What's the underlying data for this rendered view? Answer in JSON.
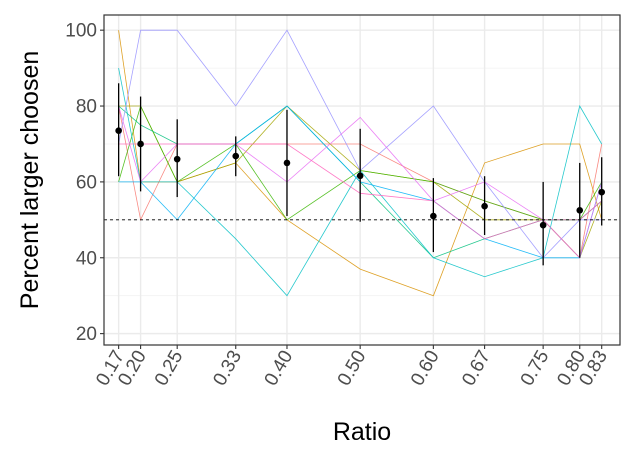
{
  "chart_data": {
    "type": "line",
    "xlabel": "Ratio",
    "ylabel": "Percent larger choosen",
    "xlim": [
      0.15,
      0.855
    ],
    "ylim": [
      17,
      104
    ],
    "x_ticks": [
      0.17,
      0.2,
      0.25,
      0.33,
      0.4,
      0.5,
      0.6,
      0.67,
      0.75,
      0.8,
      0.83
    ],
    "x_tick_labels": [
      "0.17",
      "0.20",
      "0.25",
      "0.33",
      "0.40",
      "0.50",
      "0.60",
      "0.67",
      "0.75",
      "0.80",
      "0.83"
    ],
    "y_ticks": [
      20,
      40,
      60,
      80,
      100
    ],
    "y_tick_labels": [
      "20",
      "40",
      "60",
      "80",
      "100"
    ],
    "reference_line": 50,
    "grid": true,
    "legend": "none",
    "x": [
      0.17,
      0.2,
      0.25,
      0.33,
      0.4,
      0.5,
      0.6,
      0.67,
      0.75,
      0.8,
      0.83
    ],
    "series": [
      {
        "color": "#F8766D",
        "values": [
          80,
          50,
          70,
          70,
          70,
          70,
          60,
          55,
          50,
          40,
          70
        ]
      },
      {
        "color": "#D89000",
        "values": [
          100,
          60,
          60,
          65,
          50,
          37,
          30,
          65,
          70,
          70,
          50
        ]
      },
      {
        "color": "#A3A500",
        "values": [
          80,
          80,
          60,
          65,
          80,
          63,
          60,
          50,
          50,
          40,
          55
        ]
      },
      {
        "color": "#39B600",
        "values": [
          60,
          80,
          60,
          70,
          50,
          63,
          60,
          55,
          50,
          50,
          60
        ]
      },
      {
        "color": "#00BF7D",
        "values": [
          80,
          75,
          70,
          70,
          80,
          60,
          40,
          45,
          50,
          50,
          55
        ]
      },
      {
        "color": "#00BFC4",
        "values": [
          90,
          60,
          60,
          45,
          30,
          63,
          40,
          35,
          40,
          80,
          70
        ]
      },
      {
        "color": "#00B0F6",
        "values": [
          60,
          60,
          50,
          70,
          80,
          60,
          55,
          45,
          40,
          40,
          60
        ]
      },
      {
        "color": "#9590FF",
        "values": [
          70,
          100,
          100,
          80,
          100,
          63,
          80,
          60,
          40,
          50,
          50
        ]
      },
      {
        "color": "#E76BF3",
        "values": [
          80,
          60,
          70,
          70,
          60,
          77,
          55,
          60,
          50,
          40,
          60
        ]
      },
      {
        "color": "#FF62BC",
        "values": [
          70,
          70,
          70,
          70,
          70,
          57,
          55,
          45,
          50,
          50,
          55
        ]
      }
    ],
    "means": [
      73.5,
      70,
      66,
      66.8,
      65,
      61.6,
      51,
      53.6,
      48.6,
      52.5,
      57.3
    ],
    "ci_low": [
      61.5,
      57.5,
      56,
      61.5,
      51,
      49.5,
      41.5,
      46,
      38,
      40,
      48.5
    ],
    "ci_high": [
      86,
      82.5,
      76.5,
      72,
      79,
      74,
      61,
      61.5,
      60,
      65,
      66.5
    ]
  }
}
